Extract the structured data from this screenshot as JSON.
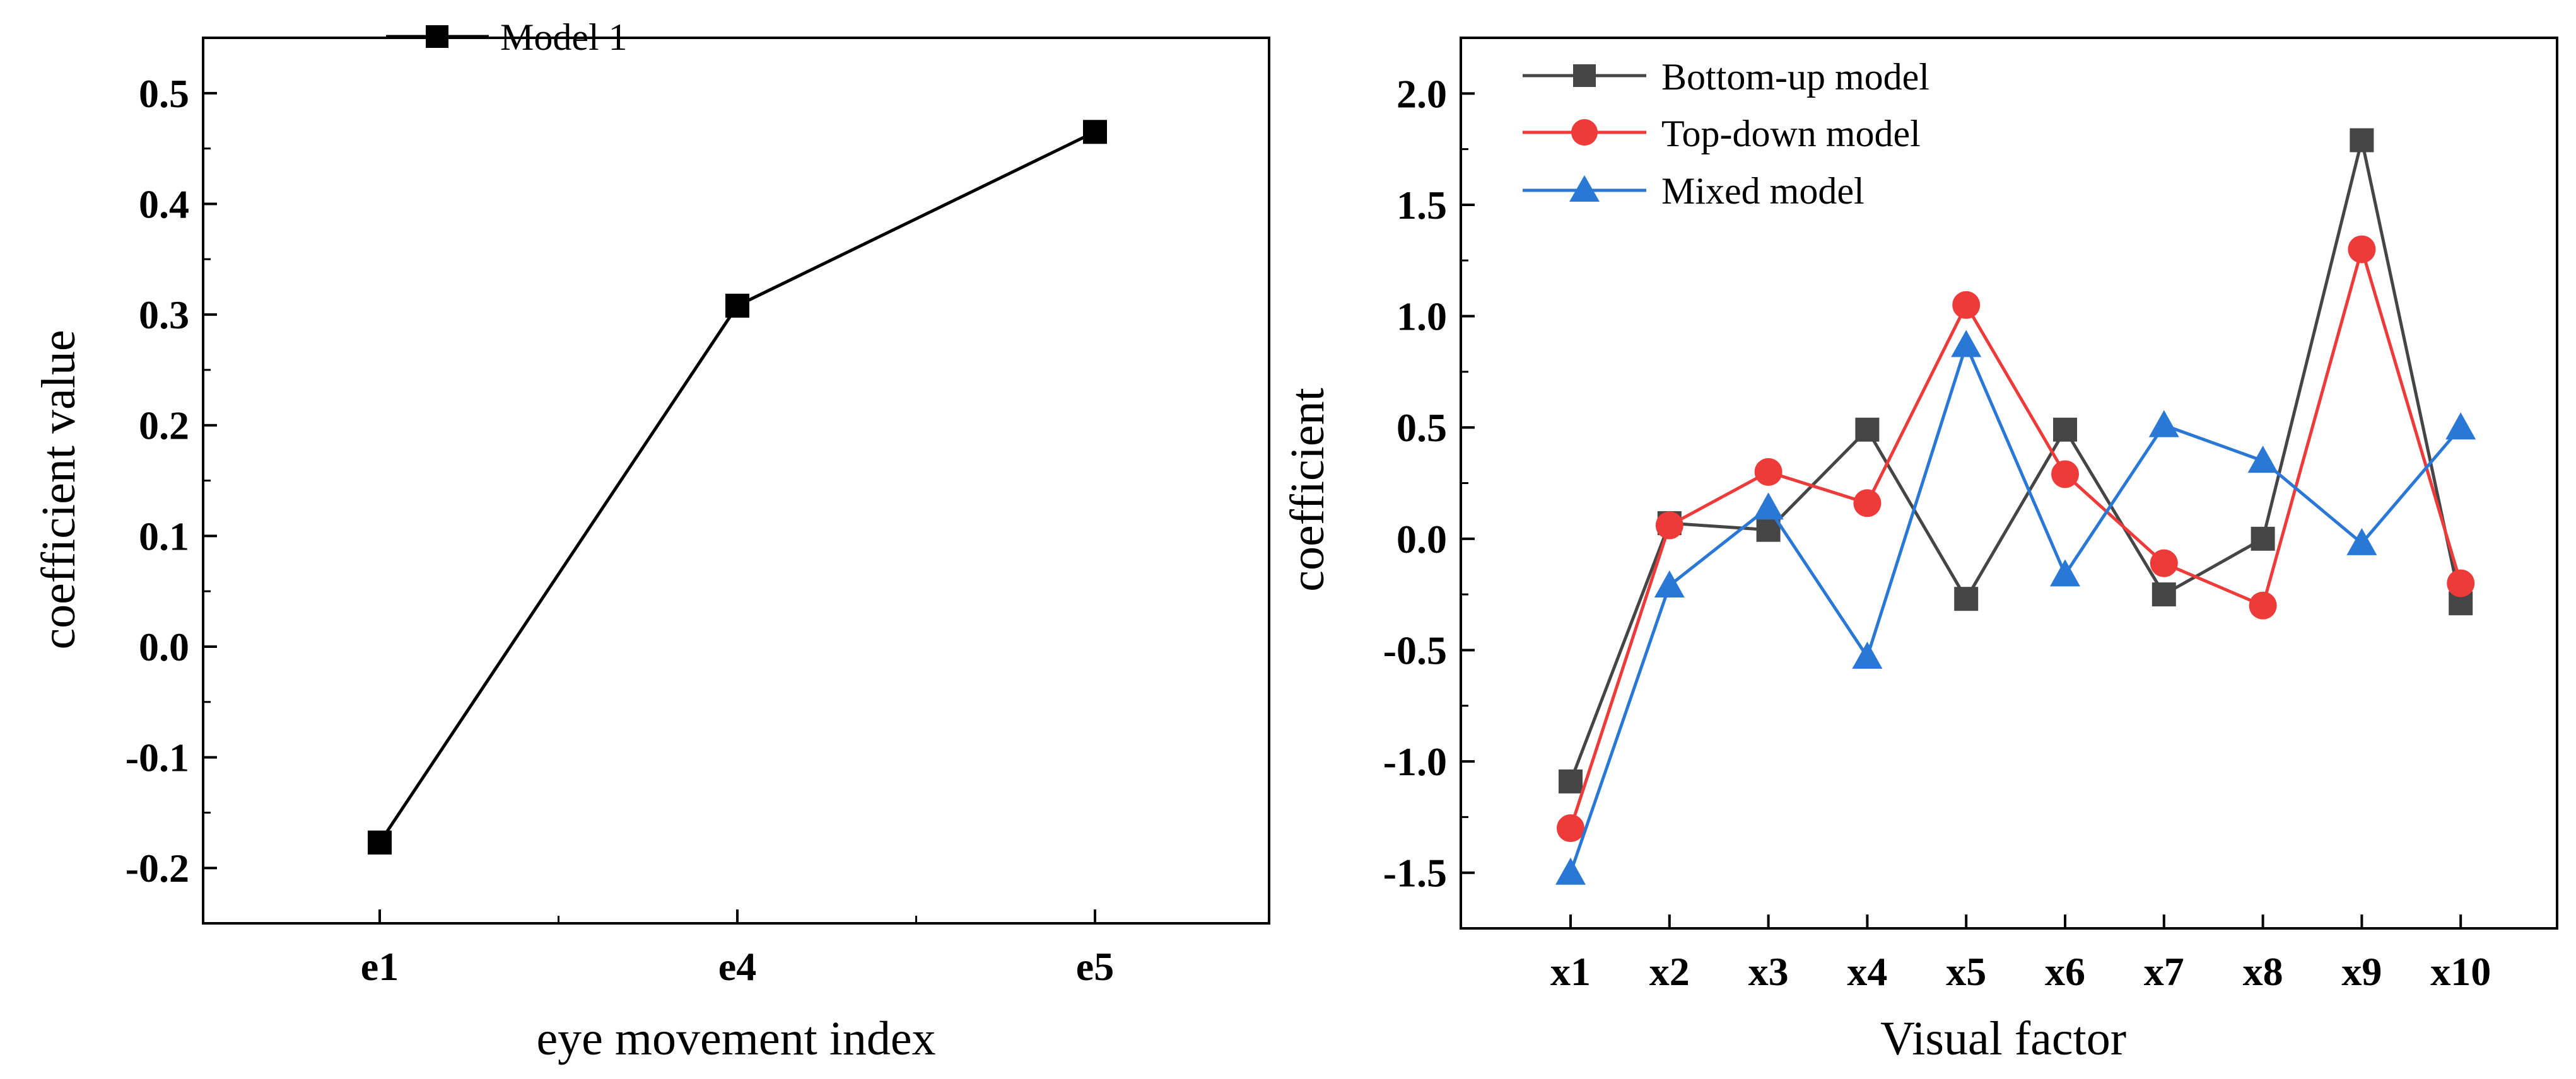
{
  "chart_data": [
    {
      "type": "line",
      "title": "",
      "xlabel": "eye movement index",
      "ylabel": "coefficient value",
      "categories": [
        "e1",
        "e4",
        "e5"
      ],
      "ylim": [
        -0.25,
        0.55
      ],
      "yticks": [
        -0.2,
        -0.1,
        0.0,
        0.1,
        0.2,
        0.3,
        0.4,
        0.5
      ],
      "ytick_labels": [
        "-0.2",
        "-0.1",
        "0.0",
        "0.1",
        "0.2",
        "0.3",
        "0.4",
        "0.5"
      ],
      "grid": false,
      "legend_position": "top-left",
      "series": [
        {
          "name": "Model 1",
          "color": "#000000",
          "marker": "square",
          "values": [
            -0.177,
            0.308,
            0.465
          ]
        }
      ]
    },
    {
      "type": "line",
      "title": "",
      "xlabel": "Visual factor",
      "ylabel": "coefficient",
      "categories": [
        "x1",
        "x2",
        "x3",
        "x4",
        "x5",
        "x6",
        "x7",
        "x8",
        "x9",
        "x10"
      ],
      "ylim": [
        -1.75,
        2.25
      ],
      "yticks": [
        -1.5,
        -1.0,
        -0.5,
        0.0,
        0.5,
        1.0,
        1.5,
        2.0
      ],
      "ytick_labels": [
        "-1.5",
        "-1.0",
        "-0.5",
        "0.0",
        "0.5",
        "1.0",
        "1.5",
        "2.0"
      ],
      "grid": false,
      "legend_position": "top-left",
      "series": [
        {
          "name": "Bottom-up model",
          "color": "#454545",
          "marker": "square",
          "values": [
            -1.09,
            0.07,
            0.04,
            0.49,
            -0.27,
            0.49,
            -0.25,
            0.0,
            1.79,
            -0.29
          ]
        },
        {
          "name": "Top-down model",
          "color": "#ef3a3a",
          "marker": "circle",
          "values": [
            -1.3,
            0.06,
            0.3,
            0.16,
            1.05,
            0.29,
            -0.11,
            -0.3,
            1.3,
            -0.2
          ]
        },
        {
          "name": "Mixed model",
          "color": "#2a78d6",
          "marker": "triangle",
          "values": [
            -1.5,
            -0.21,
            0.14,
            -0.53,
            0.87,
            -0.16,
            0.51,
            0.35,
            -0.02,
            0.5
          ]
        }
      ]
    }
  ]
}
